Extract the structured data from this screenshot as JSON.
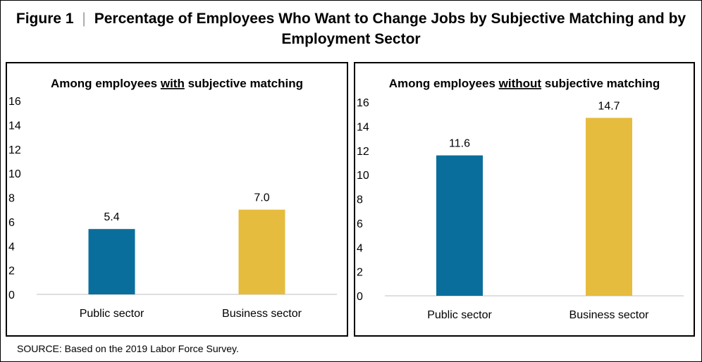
{
  "figure": {
    "label": "Figure 1",
    "separator": "|",
    "title_line1": "Percentage of Employees Who Want to Change Jobs by Subjective Matching and by",
    "title_line2": "Employment Sector"
  },
  "source": "SOURCE: Based on the 2019 Labor Force Survey.",
  "colors": {
    "public": "#0a6e9c",
    "business": "#e6bc3e",
    "axis": "#bfbfbf"
  },
  "chart_data": [
    {
      "type": "bar",
      "title_parts": [
        "Among employees ",
        "with",
        " subjective matching"
      ],
      "categories": [
        "Public sector",
        "Business sector"
      ],
      "values": [
        5.4,
        7.0
      ],
      "value_labels": [
        "5.4",
        "7.0"
      ],
      "ylim": [
        0,
        16
      ],
      "yticks": [
        0,
        2,
        4,
        6,
        8,
        10,
        12,
        14,
        16
      ],
      "grid": false,
      "legend": "none"
    },
    {
      "type": "bar",
      "title_parts": [
        "Among employees ",
        "without",
        " subjective matching"
      ],
      "categories": [
        "Public sector",
        "Business sector"
      ],
      "values": [
        11.6,
        14.7
      ],
      "value_labels": [
        "11.6",
        "14.7"
      ],
      "ylim": [
        0,
        16
      ],
      "yticks": [
        0,
        2,
        4,
        6,
        8,
        10,
        12,
        14,
        16
      ],
      "grid": false,
      "legend": "none"
    }
  ]
}
